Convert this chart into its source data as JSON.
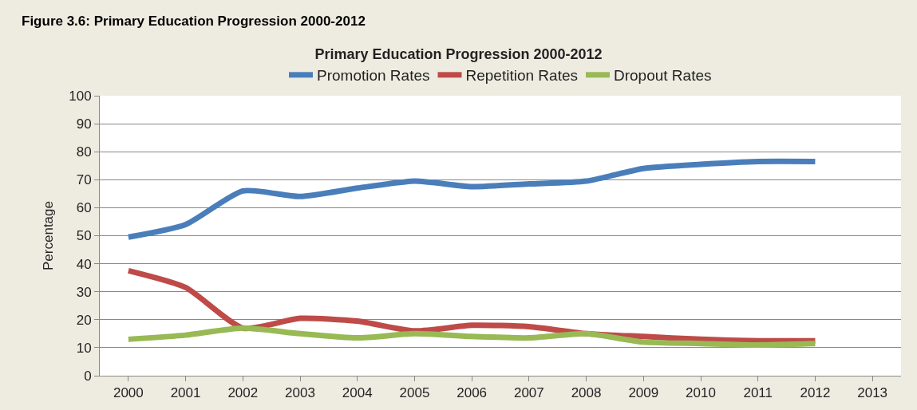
{
  "chart_data": {
    "type": "line",
    "title": "Primary Education Progression 2000-2012",
    "ylabel": "Percentage",
    "annotations": [
      "Figure 3.6: Primary Education Progression 2000-2012"
    ],
    "categories": [
      "2000",
      "2001",
      "2002",
      "2003",
      "2004",
      "2005",
      "2006",
      "2007",
      "2008",
      "2009",
      "2010",
      "2011",
      "2012",
      "2013"
    ],
    "series": [
      {
        "name": "Promotion Rates",
        "color": "#4a7ebb",
        "values": [
          49.5,
          54,
          66,
          64,
          67,
          69.5,
          67.5,
          68.5,
          69.5,
          74,
          75.5,
          76.5,
          76.5,
          null
        ]
      },
      {
        "name": "Repetition Rates",
        "color": "#be4b48",
        "values": [
          37.5,
          31.5,
          17,
          20.5,
          19.5,
          16,
          18,
          17.5,
          15,
          14,
          13,
          12.5,
          12.5,
          null
        ]
      },
      {
        "name": "Dropout Rates",
        "color": "#98b954",
        "values": [
          13,
          14.5,
          17,
          15,
          13.5,
          15,
          14,
          13.5,
          15,
          12,
          11.5,
          11,
          11.5,
          null
        ]
      }
    ],
    "ylim": [
      0,
      100
    ],
    "yticks": [
      0,
      10,
      20,
      30,
      40,
      50,
      60,
      70,
      80,
      90,
      100
    ],
    "grid": "y",
    "legend": "top",
    "marker": "none",
    "line_style": "solid"
  }
}
